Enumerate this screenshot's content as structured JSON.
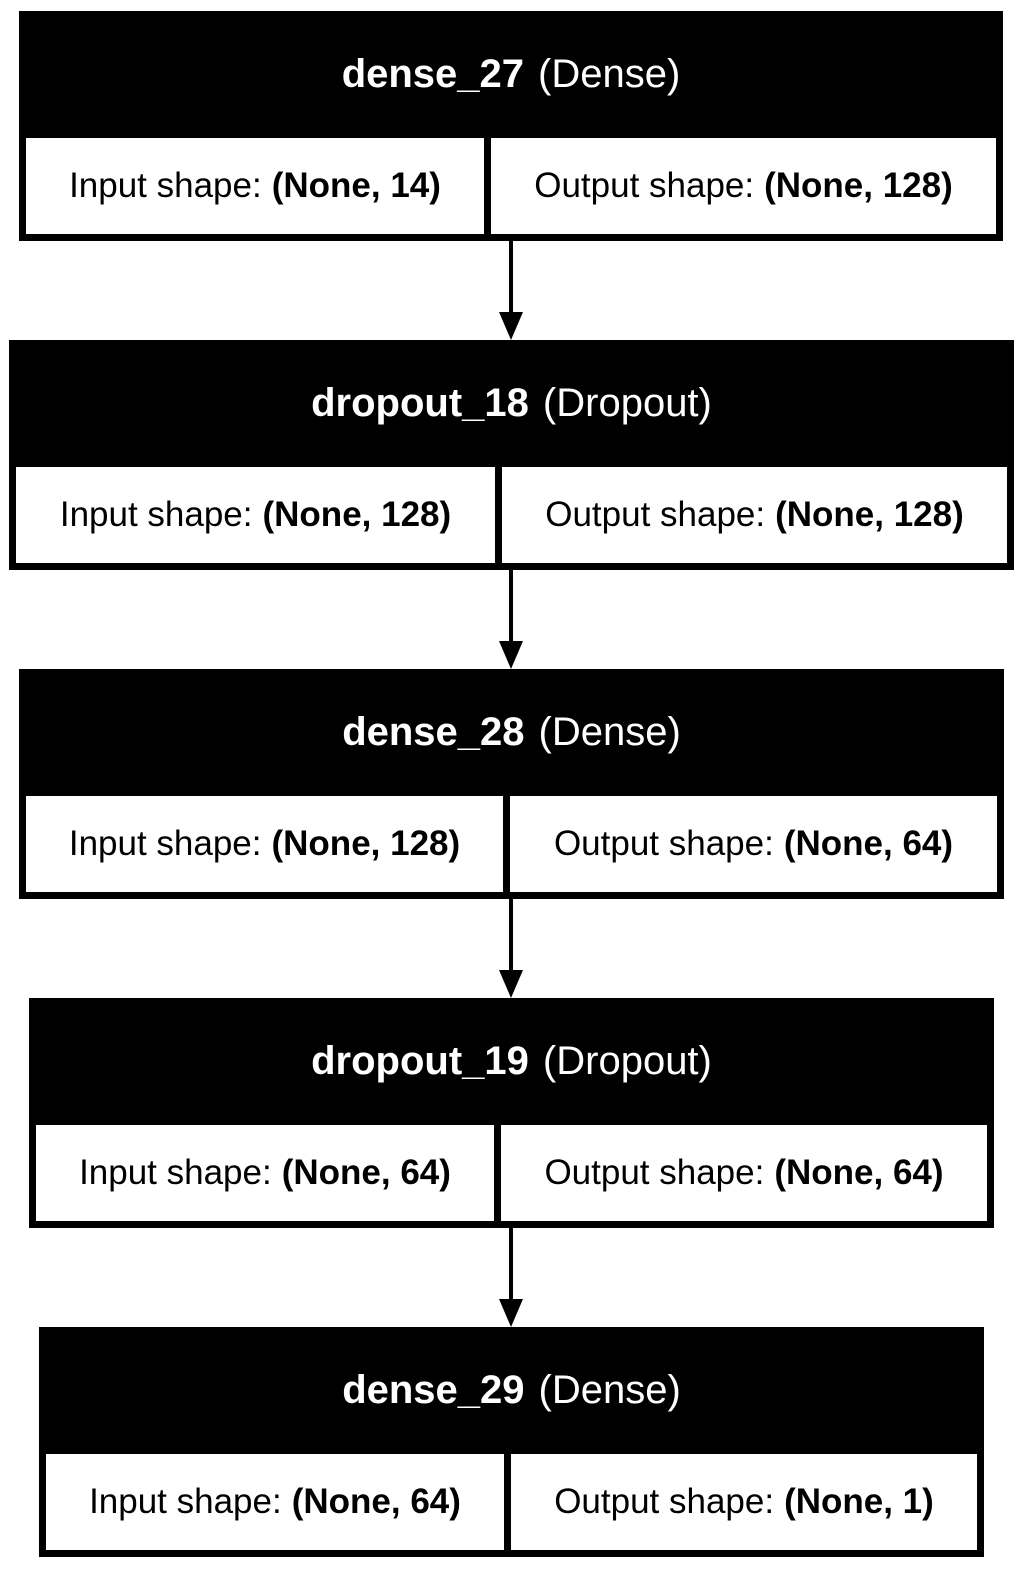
{
  "layers": [
    {
      "name": "dense_27",
      "type": "(Dense)",
      "input_label": "Input shape:",
      "input_value": "(None, 14)",
      "output_label": "Output shape:",
      "output_value": "(None, 128)"
    },
    {
      "name": "dropout_18",
      "type": "(Dropout)",
      "input_label": "Input shape:",
      "input_value": "(None, 128)",
      "output_label": "Output shape:",
      "output_value": "(None, 128)"
    },
    {
      "name": "dense_28",
      "type": "(Dense)",
      "input_label": "Input shape:",
      "input_value": "(None, 128)",
      "output_label": "Output shape:",
      "output_value": "(None, 64)"
    },
    {
      "name": "dropout_19",
      "type": "(Dropout)",
      "input_label": "Input shape:",
      "input_value": "(None, 64)",
      "output_label": "Output shape:",
      "output_value": "(None, 64)"
    },
    {
      "name": "dense_29",
      "type": "(Dense)",
      "input_label": "Input shape:",
      "input_value": "(None, 64)",
      "output_label": "Output shape:",
      "output_value": "(None, 1)"
    }
  ],
  "colors": {
    "header_bg": "#000000",
    "header_text": "#ffffff",
    "cell_bg": "#ffffff",
    "line": "#000000"
  }
}
